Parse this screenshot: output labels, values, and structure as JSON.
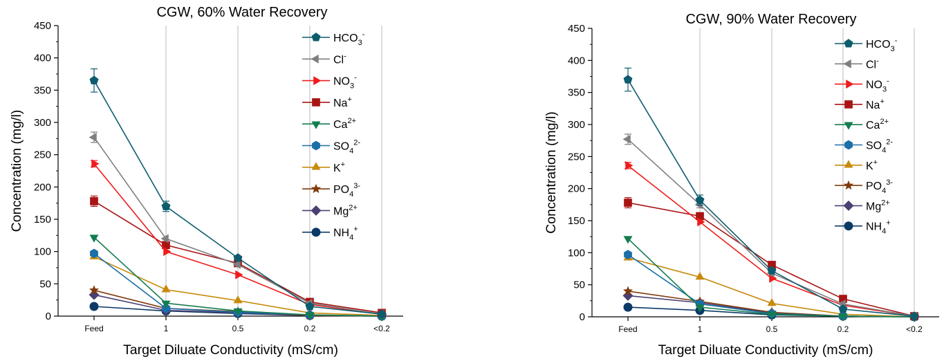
{
  "chart_data": [
    {
      "type": "line",
      "title": "CGW, 60% Water Recovery",
      "xlabel": "Target Diluate Conductivity (mS/cm)",
      "ylabel": "Concentration (mg/l)",
      "categories": [
        "Feed",
        "1",
        "0.5",
        "0.2",
        "<0.2"
      ],
      "ylim": [
        0,
        450
      ],
      "yticks": [
        "0",
        "50",
        "100",
        "150",
        "200",
        "250",
        "300",
        "350",
        "400",
        "450"
      ],
      "grid": "vertical at 1, 0.5, 0.2, <0.2",
      "legend_position": "top-right",
      "series": [
        {
          "name": "HCO3-",
          "label_base": "HCO",
          "label_sub": "3",
          "label_sup": "-",
          "color": "#0d5c6e",
          "marker": "pentagon",
          "values": [
            365,
            170,
            90,
            15,
            3
          ],
          "err": [
            18,
            8,
            0,
            0,
            0
          ]
        },
        {
          "name": "Cl-",
          "label_base": "Cl",
          "label_sub": "",
          "label_sup": "-",
          "color": "#7f7f7f",
          "marker": "triangle-left",
          "values": [
            277,
            120,
            80,
            20,
            3
          ],
          "err": [
            8,
            0,
            0,
            0,
            0
          ]
        },
        {
          "name": "NO3-",
          "label_base": "NO",
          "label_sub": "3",
          "label_sup": "-",
          "color": "#ee1c1c",
          "marker": "triangle-right",
          "values": [
            236,
            100,
            64,
            18,
            3
          ],
          "err": [
            5,
            0,
            0,
            0,
            0
          ]
        },
        {
          "name": "Na+",
          "label_base": "Na",
          "label_sub": "",
          "label_sup": "+",
          "color": "#a81414",
          "marker": "square",
          "values": [
            178,
            110,
            82,
            22,
            5
          ],
          "err": [
            8,
            0,
            0,
            0,
            0
          ]
        },
        {
          "name": "Ca2+",
          "label_base": "Ca",
          "label_sub": "",
          "label_sup": "2+",
          "color": "#137d4f",
          "marker": "triangle-down",
          "values": [
            122,
            20,
            8,
            2,
            0
          ],
          "err": [
            0,
            0,
            0,
            0,
            0
          ]
        },
        {
          "name": "SO42-",
          "label_base": "SO",
          "label_sub": "4",
          "label_sup": "2-",
          "color": "#1b6fa8",
          "marker": "hexagon",
          "values": [
            97,
            12,
            6,
            2,
            0
          ],
          "err": [
            0,
            0,
            0,
            0,
            0
          ]
        },
        {
          "name": "K+",
          "label_base": "K",
          "label_sub": "",
          "label_sup": "+",
          "color": "#c88a0c",
          "marker": "triangle-up",
          "values": [
            92,
            41,
            24,
            5,
            1
          ],
          "err": [
            0,
            0,
            0,
            0,
            0
          ]
        },
        {
          "name": "PO43-",
          "label_base": "PO",
          "label_sub": "4",
          "label_sup": "3-",
          "color": "#7f3b0c",
          "marker": "star",
          "values": [
            40,
            12,
            7,
            1,
            0
          ],
          "err": [
            0,
            0,
            0,
            0,
            0
          ]
        },
        {
          "name": "Mg2+",
          "label_base": "Mg",
          "label_sub": "",
          "label_sup": "2+",
          "color": "#4b3f73",
          "marker": "diamond",
          "values": [
            33,
            9,
            5,
            1,
            0
          ],
          "err": [
            0,
            0,
            0,
            0,
            0
          ]
        },
        {
          "name": "NH4+",
          "label_base": "NH",
          "label_sub": "4",
          "label_sup": "+",
          "color": "#0b3a66",
          "marker": "circle",
          "values": [
            15,
            8,
            4,
            1,
            0
          ],
          "err": [
            0,
            0,
            0,
            0,
            0
          ]
        }
      ]
    },
    {
      "type": "line",
      "title": "CGW, 90% Water Recovery",
      "xlabel": "Target Diluate Conductivity (mS/cm)",
      "ylabel": "Concentration (mg/l)",
      "categories": [
        "Feed",
        "1",
        "0.5",
        "0.2",
        "<0.2"
      ],
      "ylim": [
        0,
        450
      ],
      "yticks": [
        "0",
        "50",
        "100",
        "150",
        "200",
        "250",
        "300",
        "350",
        "400",
        "450"
      ],
      "grid": "vertical at 1, 0.5, 0.2, <0.2",
      "legend_position": "top-right",
      "series": [
        {
          "name": "HCO3-",
          "label_base": "HCO",
          "label_sub": "3",
          "label_sup": "-",
          "color": "#0d5c6e",
          "marker": "pentagon",
          "values": [
            370,
            182,
            72,
            12,
            1
          ],
          "err": [
            18,
            8,
            0,
            0,
            0
          ]
        },
        {
          "name": "Cl-",
          "label_base": "Cl",
          "label_sub": "",
          "label_sup": "-",
          "color": "#7f7f7f",
          "marker": "triangle-left",
          "values": [
            277,
            175,
            68,
            20,
            1
          ],
          "err": [
            8,
            5,
            0,
            0,
            0
          ]
        },
        {
          "name": "NO3-",
          "label_base": "NO",
          "label_sub": "3",
          "label_sup": "-",
          "color": "#ee1c1c",
          "marker": "triangle-right",
          "values": [
            236,
            148,
            60,
            18,
            1
          ],
          "err": [
            5,
            0,
            0,
            0,
            0
          ]
        },
        {
          "name": "Na+",
          "label_base": "Na",
          "label_sub": "",
          "label_sup": "+",
          "color": "#a81414",
          "marker": "square",
          "values": [
            178,
            157,
            81,
            28,
            1
          ],
          "err": [
            8,
            0,
            0,
            0,
            0
          ]
        },
        {
          "name": "Ca2+",
          "label_base": "Ca",
          "label_sub": "",
          "label_sup": "2+",
          "color": "#137d4f",
          "marker": "triangle-down",
          "values": [
            122,
            15,
            4,
            1,
            0
          ],
          "err": [
            0,
            0,
            0,
            0,
            0
          ]
        },
        {
          "name": "SO42-",
          "label_base": "SO",
          "label_sub": "4",
          "label_sup": "2-",
          "color": "#1b6fa8",
          "marker": "hexagon",
          "values": [
            97,
            20,
            5,
            1,
            0
          ],
          "err": [
            0,
            0,
            0,
            0,
            0
          ]
        },
        {
          "name": "K+",
          "label_base": "K",
          "label_sub": "",
          "label_sup": "+",
          "color": "#c88a0c",
          "marker": "triangle-up",
          "values": [
            92,
            62,
            21,
            4,
            0
          ],
          "err": [
            0,
            0,
            0,
            0,
            0
          ]
        },
        {
          "name": "PO43-",
          "label_base": "PO",
          "label_sub": "4",
          "label_sup": "3-",
          "color": "#7f3b0c",
          "marker": "star",
          "values": [
            40,
            24,
            7,
            1,
            0
          ],
          "err": [
            0,
            0,
            0,
            0,
            0
          ]
        },
        {
          "name": "Mg2+",
          "label_base": "Mg",
          "label_sub": "",
          "label_sup": "2+",
          "color": "#4b3f73",
          "marker": "diamond",
          "values": [
            33,
            22,
            6,
            1,
            0
          ],
          "err": [
            0,
            0,
            0,
            0,
            0
          ]
        },
        {
          "name": "NH4+",
          "label_base": "NH",
          "label_sub": "4",
          "label_sup": "+",
          "color": "#0b3a66",
          "marker": "circle",
          "values": [
            15,
            10,
            3,
            1,
            0
          ],
          "err": [
            0,
            0,
            0,
            0,
            0
          ]
        }
      ]
    }
  ]
}
